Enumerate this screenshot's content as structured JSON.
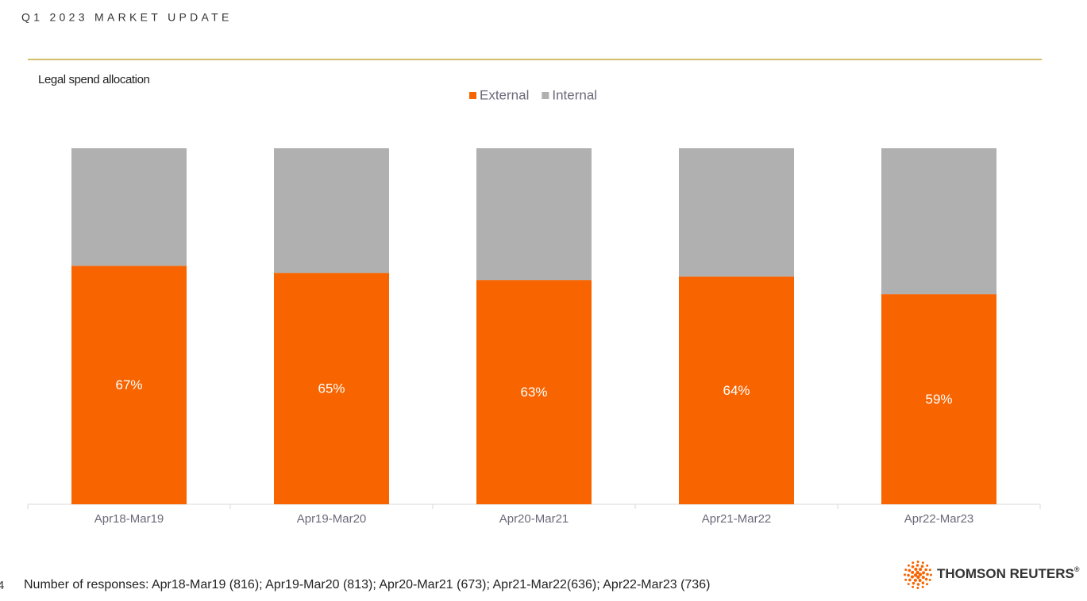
{
  "page": {
    "header": "Q1 2023 MARKET UPDATE",
    "footnote": "Number of responses: Apr18-Mar19 (816); Apr19-Mar20 (813); Apr20-Mar21 (673); Apr21-Mar22(636); Apr22-Mar23 (736)",
    "page_number": "4",
    "logo": "THOMSON REUTERS",
    "logo_mark": "®"
  },
  "chart_data": {
    "type": "stacked_bar",
    "title": "Legal spend allocation",
    "categories": [
      "Apr18-Mar19",
      "Apr19-Mar20",
      "Apr20-Mar21",
      "Apr21-Mar22",
      "Apr22-Mar23"
    ],
    "series": [
      {
        "name": "External",
        "color": "#f76400",
        "values": [
          67,
          65,
          63,
          64,
          59
        ],
        "value_labels": [
          "67%",
          "65%",
          "63%",
          "64%",
          "59%"
        ]
      },
      {
        "name": "Internal",
        "color": "#b0b0b0",
        "values": [
          33,
          35,
          37,
          36,
          41
        ]
      }
    ],
    "ylim": [
      0,
      100
    ],
    "legend": "top"
  }
}
